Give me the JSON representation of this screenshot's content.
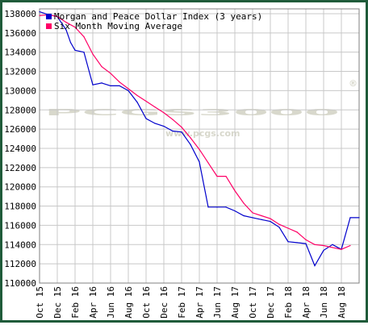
{
  "chart_data": {
    "type": "line",
    "y_ticks": [
      110000,
      112000,
      114000,
      116000,
      118000,
      120000,
      122000,
      124000,
      126000,
      128000,
      130000,
      132000,
      134000,
      136000,
      138000
    ],
    "ylim": [
      110000,
      138500
    ],
    "x_tick_labels": [
      "Oct 15",
      "Dec 15",
      "Feb 16",
      "Apr 16",
      "Jun 16",
      "Aug 16",
      "Oct 16",
      "Dec 16",
      "Feb 17",
      "Apr 17",
      "Jun 17",
      "Aug 17",
      "Oct 17",
      "Dec 17",
      "Feb 18",
      "Apr 18",
      "Jun 18",
      "Aug 18"
    ],
    "xlim": [
      0,
      36
    ],
    "grid": true,
    "legend_position": "top-left",
    "series": [
      {
        "name": "Morgan and Peace Dollar Index (3 years)",
        "color": "#0000cc",
        "x": [
          0,
          1,
          2,
          3,
          3.5,
          4,
          5,
          6,
          7,
          8,
          9,
          10,
          11,
          12,
          13,
          14,
          15,
          16,
          17,
          18,
          19,
          20,
          21,
          22,
          23,
          24,
          25,
          26,
          27,
          28,
          29,
          30,
          31,
          32,
          33,
          34,
          35,
          36
        ],
        "values": [
          138200,
          137900,
          137700,
          136300,
          135000,
          134200,
          134000,
          130600,
          130800,
          130500,
          130500,
          130000,
          128800,
          127100,
          126600,
          126300,
          125800,
          125700,
          124400,
          122600,
          117900,
          117900,
          117900,
          117500,
          117000,
          116800,
          116600,
          116400,
          115800,
          114300,
          114200,
          114100,
          111800,
          113400,
          114000,
          113500,
          116800,
          116800
        ]
      },
      {
        "name": "Six Month Moving Average",
        "color": "#ff0066",
        "x": [
          0,
          1,
          2,
          3,
          4,
          5,
          6,
          7,
          8,
          9,
          10,
          11,
          12,
          13,
          14,
          15,
          16,
          17,
          18,
          19,
          20,
          21,
          22,
          23,
          24,
          25,
          26,
          27,
          28,
          29,
          30,
          31,
          32,
          33,
          34,
          35
        ],
        "values": [
          137800,
          137900,
          137700,
          137100,
          136600,
          135600,
          133800,
          132500,
          131800,
          130900,
          130200,
          129500,
          128900,
          128300,
          127700,
          127000,
          126200,
          125100,
          123900,
          122500,
          121100,
          121100,
          119600,
          118300,
          117300,
          117000,
          116700,
          116100,
          115700,
          115300,
          114500,
          114000,
          113900,
          113700,
          113500,
          113900
        ]
      }
    ]
  },
  "watermark": {
    "brand": "PCGS3000",
    "registered": "®",
    "url": "www.pcgs.com"
  }
}
